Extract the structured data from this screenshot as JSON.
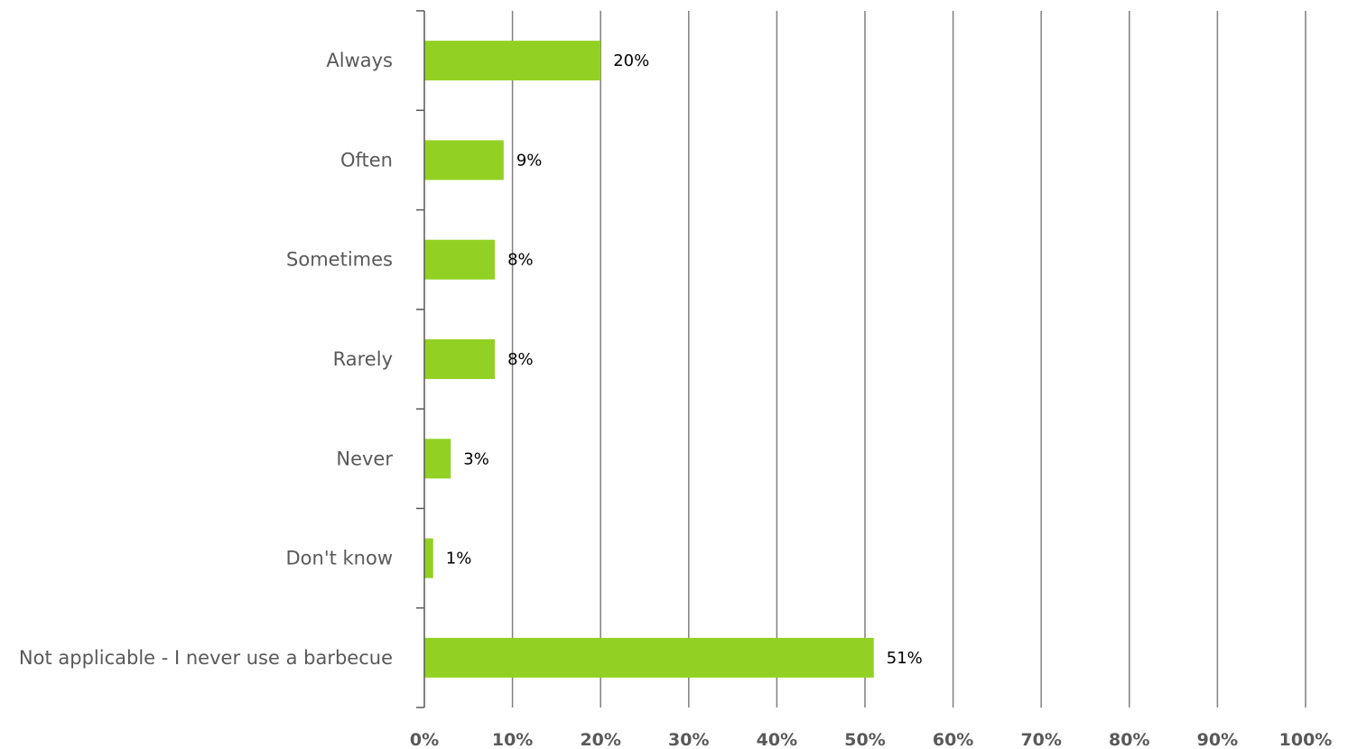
{
  "chart_data": {
    "type": "bar",
    "orientation": "horizontal",
    "categories": [
      "Always",
      "Often",
      "Sometimes",
      "Rarely",
      "Never",
      "Don't know",
      "Not applicable - I never use a barbecue"
    ],
    "values": [
      20,
      9,
      8,
      8,
      3,
      1,
      51
    ],
    "value_labels": [
      "20%",
      "9%",
      "8%",
      "8%",
      "3%",
      "1%",
      "51%"
    ],
    "xlim": [
      0,
      100
    ],
    "xticks": [
      0,
      10,
      20,
      30,
      40,
      50,
      60,
      70,
      80,
      90,
      100
    ],
    "xtick_labels": [
      "0%",
      "10%",
      "20%",
      "30%",
      "40%",
      "50%",
      "60%",
      "70%",
      "80%",
      "90%",
      "100%"
    ],
    "grid": "vertical",
    "legend": "none",
    "colors": {
      "bar": "#92d123",
      "grid": "#7f7f7f",
      "axis": "#595959",
      "text": "#595959"
    }
  }
}
